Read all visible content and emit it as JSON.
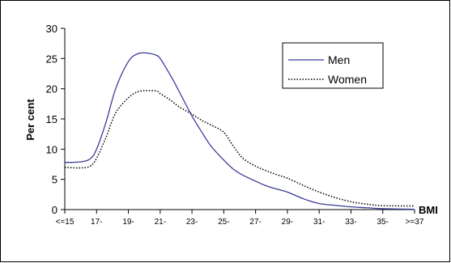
{
  "chart_data": {
    "type": "line",
    "categories": [
      "<=15",
      "17-",
      "19-",
      "21-",
      "23-",
      "25-",
      "27-",
      "29-",
      "31-",
      "33-",
      "35-",
      ">=37"
    ],
    "ylabel": "Per cent",
    "xlabel": "BMI",
    "ylim": [
      0,
      30
    ],
    "yticks": [
      0,
      5,
      10,
      15,
      20,
      25,
      30
    ],
    "legend_position": "top-right",
    "series": [
      {
        "name": "Men",
        "color": "#3b3b9a",
        "style": "solid",
        "x": [
          0,
          0.5,
          0.8,
          1,
          1.3,
          1.6,
          2,
          2.3,
          2.6,
          2.9,
          3,
          3.1,
          3.4,
          3.7,
          4,
          4.3,
          4.6,
          5,
          5.3,
          5.6,
          6,
          6.3,
          6.6,
          7,
          7.5,
          8,
          8.5,
          9,
          9.5,
          10,
          11
        ],
        "values": [
          7.8,
          7.9,
          8.4,
          10,
          14.5,
          20,
          24.5,
          25.8,
          25.9,
          25.5,
          25,
          24.2,
          21.5,
          18.5,
          15.5,
          12.9,
          10.5,
          8.2,
          6.7,
          5.7,
          4.7,
          4.0,
          3.5,
          2.9,
          1.8,
          1.0,
          0.7,
          0.45,
          0.3,
          0.15,
          0.05
        ]
      },
      {
        "name": "Women",
        "color": "#000000",
        "style": "dotted",
        "x": [
          0,
          0.5,
          0.8,
          1,
          1.3,
          1.6,
          2,
          2.3,
          2.6,
          2.9,
          3,
          3.3,
          3.6,
          4,
          4.3,
          4.6,
          5,
          5.3,
          5.6,
          6,
          6.3,
          6.6,
          7,
          7.5,
          8,
          8.5,
          9,
          9.5,
          10,
          11
        ],
        "values": [
          7.0,
          6.9,
          7.2,
          8.5,
          12,
          16,
          18.5,
          19.5,
          19.7,
          19.6,
          19.2,
          18.2,
          17.0,
          15.8,
          14.8,
          14.0,
          12.8,
          10.5,
          8.5,
          7.2,
          6.5,
          5.9,
          5.2,
          4.0,
          2.9,
          2.0,
          1.3,
          0.9,
          0.65,
          0.6
        ]
      }
    ]
  }
}
